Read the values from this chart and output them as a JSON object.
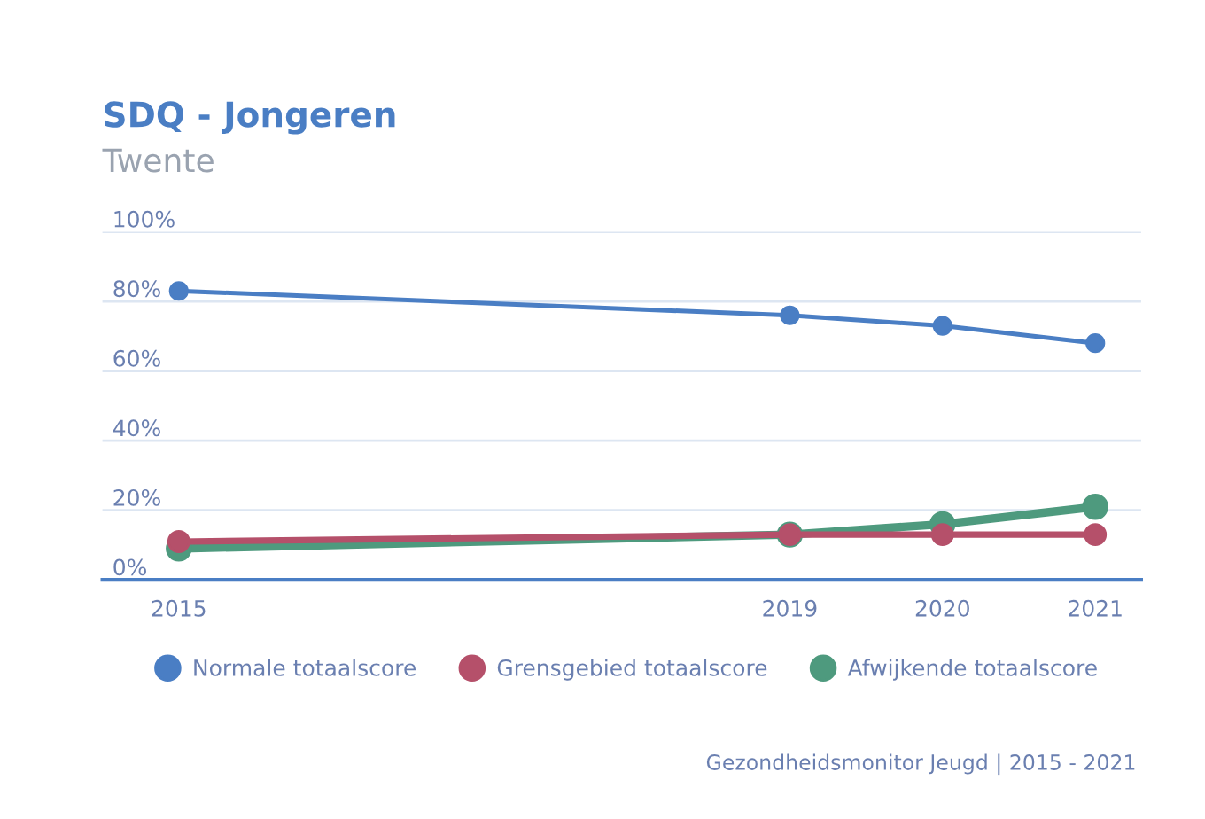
{
  "chart_data": {
    "type": "line",
    "title": "SDQ - Jongeren",
    "subtitle": "Twente",
    "x": [
      2015,
      2019,
      2020,
      2021
    ],
    "series": [
      {
        "name": "Normale totaalscore",
        "color": "#4a7ec4",
        "values": [
          83,
          76,
          73,
          68
        ]
      },
      {
        "name": "Grensgebied totaalscore",
        "color": "#b5506a",
        "values": [
          11,
          13,
          13,
          13
        ]
      },
      {
        "name": "Afwijkende totaalscore",
        "color": "#4e9a7e",
        "values": [
          9,
          13,
          16,
          21
        ]
      }
    ],
    "xlim": [
      2014.5,
      2021.3
    ],
    "xticks": [
      2015,
      2019,
      2020,
      2021
    ],
    "ylim": [
      0,
      100
    ],
    "yticks": [
      {
        "value": 0,
        "label": "0%"
      },
      {
        "value": 20,
        "label": "20%"
      },
      {
        "value": 40,
        "label": "40%"
      },
      {
        "value": 60,
        "label": "60%"
      },
      {
        "value": 80,
        "label": "80%"
      },
      {
        "value": 100,
        "label": "100%"
      }
    ],
    "grid": "y",
    "legend": "bottom",
    "marker": "circle",
    "line_style": "solid",
    "annotations": [
      "Gezondheidsmonitor Jeugd | 2015 - 2021"
    ]
  }
}
